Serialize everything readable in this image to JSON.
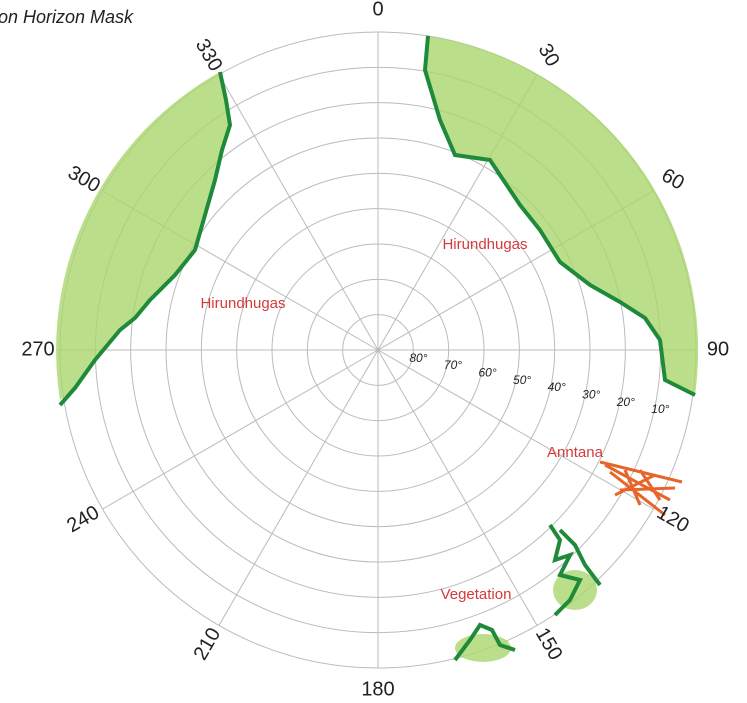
{
  "title": "on Horizon Mask",
  "azimuth_labels": [
    "0",
    "30",
    "60",
    "90",
    "120",
    "150",
    "180",
    "210",
    "240",
    "270",
    "300",
    "330"
  ],
  "elevation_labels": [
    "80°",
    "70°",
    "60°",
    "50°",
    "40°",
    "30°",
    "20°",
    "10°"
  ],
  "annotations": {
    "obstacle_left": "Hirundhugas",
    "obstacle_right": "Hirundhugas",
    "antenna": "Anntana",
    "vegetation": "Vegetation"
  }
}
